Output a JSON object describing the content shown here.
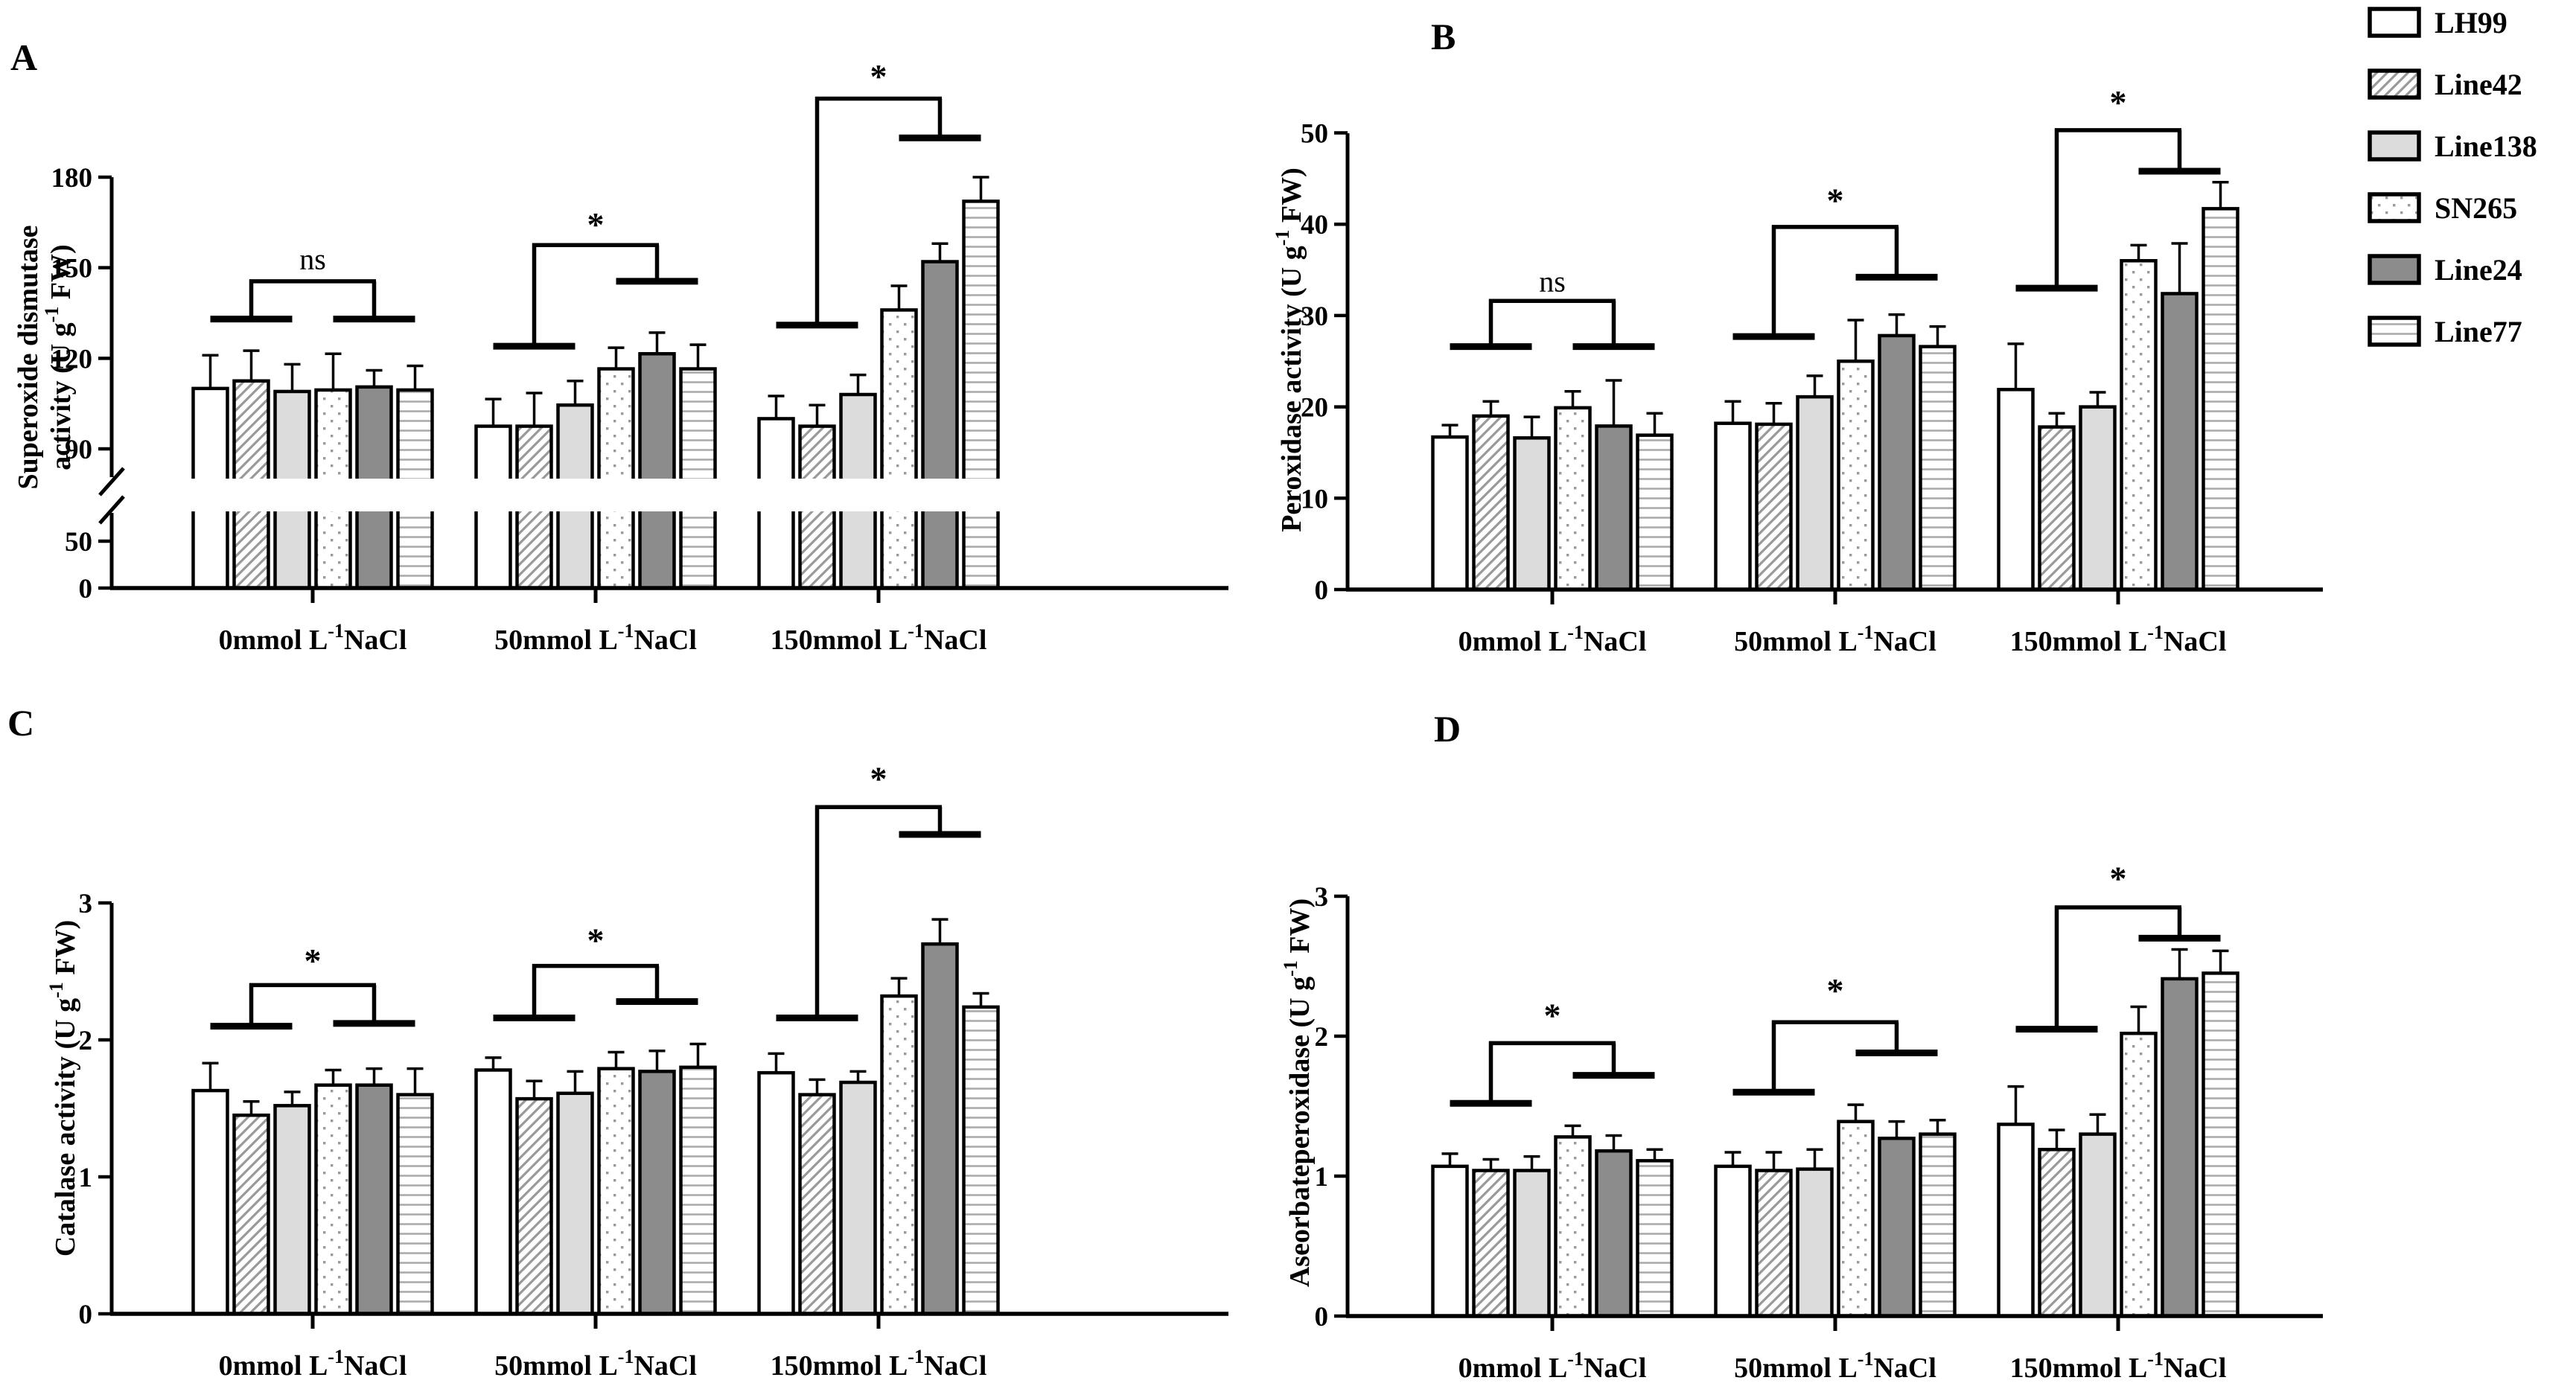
{
  "colors": {
    "ink": "#000000",
    "background": "#ffffff",
    "light_gray_fill": "#dcdcdc",
    "dark_gray_fill": "#8c8c8c",
    "hatch_gray": "#999999",
    "dot_gray": "#9a9a9a",
    "hline_gray": "#ababab"
  },
  "legend": {
    "items": [
      {
        "label": "LH99",
        "pattern": "white"
      },
      {
        "label": "Line42",
        "pattern": "diag"
      },
      {
        "label": "Line138",
        "pattern": "lightgray"
      },
      {
        "label": "SN265",
        "pattern": "dots"
      },
      {
        "label": "Line24",
        "pattern": "darkgray"
      },
      {
        "label": "Line77",
        "pattern": "hlines"
      }
    ]
  },
  "chart_data": [
    {
      "id": "A",
      "panel_label": "A",
      "type": "bar",
      "ylabel": "Superoxide dismutase activity (U g-1 FW)",
      "ylabel_render": [
        [
          {
            "t": "Superoxide dismutase"
          }
        ],
        [
          {
            "t": "activity (U g"
          },
          {
            "t": "-1",
            "sup": true
          },
          {
            "t": " FW)"
          }
        ]
      ],
      "xlabel": "",
      "categories": [
        "0mmol L-1NaCl",
        "50mmol L-1NaCl",
        "150mmol L-1NaCl"
      ],
      "categories_render": [
        [
          {
            "t": "0mmol L"
          },
          {
            "t": "-1",
            "sup": true
          },
          {
            "t": "NaCl"
          }
        ],
        [
          {
            "t": "50mmol L"
          },
          {
            "t": "-1",
            "sup": true
          },
          {
            "t": "NaCl"
          }
        ],
        [
          {
            "t": "150mmol L"
          },
          {
            "t": "-1",
            "sup": true
          },
          {
            "t": "NaCl"
          }
        ]
      ],
      "ylim": [
        0,
        180
      ],
      "axis_break": {
        "low_max": 50,
        "resume_at": 90
      },
      "yticks": [
        {
          "v": 0,
          "label": "0"
        },
        {
          "v": 50,
          "label": "50"
        },
        {
          "v": 90,
          "label": "90"
        },
        {
          "v": 120,
          "label": "120"
        },
        {
          "v": 150,
          "label": "150"
        },
        {
          "v": 180,
          "label": "180"
        }
      ],
      "series": [
        {
          "name": "LH99",
          "values": [
            110.0,
            97.5,
            100.0
          ],
          "errors": [
            11.0,
            9.0,
            7.5
          ]
        },
        {
          "name": "Line42",
          "values": [
            112.5,
            97.5,
            97.5
          ],
          "errors": [
            10.0,
            11.0,
            7.0
          ]
        },
        {
          "name": "Line138",
          "values": [
            109.0,
            104.5,
            108.0
          ],
          "errors": [
            9.0,
            8.0,
            6.5
          ]
        },
        {
          "name": "SN265",
          "values": [
            109.5,
            116.5,
            136.0
          ],
          "errors": [
            12.0,
            7.0,
            8.0
          ]
        },
        {
          "name": "Line24",
          "values": [
            110.5,
            121.5,
            152.0
          ],
          "errors": [
            5.5,
            7.0,
            6.0
          ]
        },
        {
          "name": "Line77",
          "values": [
            109.5,
            116.5,
            172.0
          ],
          "errors": [
            8.0,
            8.0,
            8.0
          ]
        }
      ],
      "annotations": [
        {
          "group": 0,
          "label": "ns",
          "left_foot": 133,
          "peak": 145.5,
          "right_foot": 133,
          "label_v": 153
        },
        {
          "group": 1,
          "label": "*",
          "left_foot": 124,
          "peak": 157.5,
          "right_foot": 145.5,
          "label_v": 164
        },
        {
          "group": 2,
          "label": "*",
          "left_foot": 131,
          "peak": 206,
          "right_foot": 193,
          "label_v": 213
        }
      ]
    },
    {
      "id": "B",
      "panel_label": "B",
      "type": "bar",
      "ylabel": "Peroxidase activity (U g-1 FW)",
      "ylabel_render": [
        [
          {
            "t": "Peroxidase activity (U g"
          },
          {
            "t": "-1",
            "sup": true
          },
          {
            "t": " FW)"
          }
        ]
      ],
      "xlabel": "",
      "categories": [
        "0mmol L-1NaCl",
        "50mmol L-1NaCl",
        "150mmol L-1NaCl"
      ],
      "categories_render": [
        [
          {
            "t": "0mmol L"
          },
          {
            "t": "-1",
            "sup": true
          },
          {
            "t": "NaCl"
          }
        ],
        [
          {
            "t": "50mmol L"
          },
          {
            "t": "-1",
            "sup": true
          },
          {
            "t": "NaCl"
          }
        ],
        [
          {
            "t": "150mmol L"
          },
          {
            "t": "-1",
            "sup": true
          },
          {
            "t": "NaCl"
          }
        ]
      ],
      "ylim": [
        0,
        50
      ],
      "yticks": [
        {
          "v": 0,
          "label": "0"
        },
        {
          "v": 10,
          "label": "10"
        },
        {
          "v": 20,
          "label": "20"
        },
        {
          "v": 30,
          "label": "30"
        },
        {
          "v": 40,
          "label": "40"
        },
        {
          "v": 50,
          "label": "50"
        }
      ],
      "series": [
        {
          "name": "LH99",
          "values": [
            16.7,
            18.2,
            21.9
          ],
          "errors": [
            1.3,
            2.4,
            5.0
          ]
        },
        {
          "name": "Line42",
          "values": [
            19.0,
            18.1,
            17.8
          ],
          "errors": [
            1.6,
            2.3,
            1.5
          ]
        },
        {
          "name": "Line138",
          "values": [
            16.6,
            21.1,
            20.0
          ],
          "errors": [
            2.3,
            2.3,
            1.6
          ]
        },
        {
          "name": "SN265",
          "values": [
            19.9,
            25.0,
            36.0
          ],
          "errors": [
            1.8,
            4.5,
            1.7
          ]
        },
        {
          "name": "Line24",
          "values": [
            17.9,
            27.8,
            32.4
          ],
          "errors": [
            5.0,
            2.3,
            5.5
          ]
        },
        {
          "name": "Line77",
          "values": [
            16.9,
            26.6,
            41.7
          ],
          "errors": [
            2.4,
            2.2,
            2.9
          ]
        }
      ],
      "annotations": [
        {
          "group": 0,
          "label": "ns",
          "left_foot": 26.6,
          "peak": 31.6,
          "right_foot": 26.6,
          "label_v": 33.8
        },
        {
          "group": 1,
          "label": "*",
          "left_foot": 27.7,
          "peak": 39.7,
          "right_foot": 34.2,
          "label_v": 42.5
        },
        {
          "group": 2,
          "label": "*",
          "left_foot": 33.0,
          "peak": 50.3,
          "right_foot": 45.8,
          "label_v": 53.2
        }
      ]
    },
    {
      "id": "C",
      "panel_label": "C",
      "type": "bar",
      "ylabel": "Catalase activity (U g-1 FW)",
      "ylabel_render": [
        [
          {
            "t": "Catalase activity (U g"
          },
          {
            "t": "-1",
            "sup": true
          },
          {
            "t": " FW)"
          }
        ]
      ],
      "xlabel": "",
      "categories": [
        "0mmol L-1NaCl",
        "50mmol L-1NaCl",
        "150mmol L-1NaCl"
      ],
      "categories_render": [
        [
          {
            "t": "0mmol L"
          },
          {
            "t": "-1",
            "sup": true
          },
          {
            "t": "NaCl"
          }
        ],
        [
          {
            "t": "50mmol L"
          },
          {
            "t": "-1",
            "sup": true
          },
          {
            "t": "NaCl"
          }
        ],
        [
          {
            "t": "150mmol L"
          },
          {
            "t": "-1",
            "sup": true
          },
          {
            "t": "NaCl"
          }
        ]
      ],
      "ylim": [
        0,
        3
      ],
      "yticks": [
        {
          "v": 0,
          "label": "0"
        },
        {
          "v": 1,
          "label": "1"
        },
        {
          "v": 2,
          "label": "2"
        },
        {
          "v": 3,
          "label": "3"
        }
      ],
      "series": [
        {
          "name": "LH99",
          "values": [
            1.63,
            1.78,
            1.76
          ],
          "errors": [
            0.2,
            0.09,
            0.14
          ]
        },
        {
          "name": "Line42",
          "values": [
            1.45,
            1.57,
            1.6
          ],
          "errors": [
            0.1,
            0.13,
            0.11
          ]
        },
        {
          "name": "Line138",
          "values": [
            1.52,
            1.61,
            1.69
          ],
          "errors": [
            0.1,
            0.16,
            0.08
          ]
        },
        {
          "name": "SN265",
          "values": [
            1.67,
            1.79,
            2.32
          ],
          "errors": [
            0.11,
            0.12,
            0.13
          ]
        },
        {
          "name": "Line24",
          "values": [
            1.67,
            1.77,
            2.7
          ],
          "errors": [
            0.12,
            0.15,
            0.18
          ]
        },
        {
          "name": "Line77",
          "values": [
            1.6,
            1.8,
            2.24
          ],
          "errors": [
            0.19,
            0.17,
            0.1
          ]
        }
      ],
      "annotations": [
        {
          "group": 0,
          "label": "*",
          "left_foot": 2.1,
          "peak": 2.4,
          "right_foot": 2.12,
          "label_v": 2.57
        },
        {
          "group": 1,
          "label": "*",
          "left_foot": 2.16,
          "peak": 2.54,
          "right_foot": 2.28,
          "label_v": 2.72
        },
        {
          "group": 2,
          "label": "*",
          "left_foot": 2.16,
          "peak": 3.7,
          "right_foot": 3.5,
          "label_v": 3.9
        }
      ]
    },
    {
      "id": "D",
      "panel_label": "D",
      "type": "bar",
      "ylabel": "Aseorbateperoxidase (U g-1 FW)",
      "ylabel_render": [
        [
          {
            "t": "Aseorbateperoxidase (U g"
          },
          {
            "t": "-1",
            "sup": true
          },
          {
            "t": " FW)"
          }
        ]
      ],
      "xlabel": "",
      "categories": [
        "0mmol L-1NaCl",
        "50mmol L-1NaCl",
        "150mmol L-1NaCl"
      ],
      "categories_render": [
        [
          {
            "t": "0mmol L"
          },
          {
            "t": "-1",
            "sup": true
          },
          {
            "t": "NaCl"
          }
        ],
        [
          {
            "t": "50mmol L"
          },
          {
            "t": "-1",
            "sup": true
          },
          {
            "t": "NaCl"
          }
        ],
        [
          {
            "t": "150mmol L"
          },
          {
            "t": "-1",
            "sup": true
          },
          {
            "t": "NaCl"
          }
        ]
      ],
      "ylim": [
        0,
        3
      ],
      "yticks": [
        {
          "v": 0,
          "label": "0"
        },
        {
          "v": 1,
          "label": "1"
        },
        {
          "v": 2,
          "label": "2"
        },
        {
          "v": 3,
          "label": "3"
        }
      ],
      "series": [
        {
          "name": "LH99",
          "values": [
            1.07,
            1.07,
            1.37
          ],
          "errors": [
            0.09,
            0.1,
            0.27
          ]
        },
        {
          "name": "Line42",
          "values": [
            1.04,
            1.04,
            1.19
          ],
          "errors": [
            0.08,
            0.13,
            0.14
          ]
        },
        {
          "name": "Line138",
          "values": [
            1.04,
            1.05,
            1.3
          ],
          "errors": [
            0.1,
            0.14,
            0.14
          ]
        },
        {
          "name": "SN265",
          "values": [
            1.28,
            1.39,
            2.02
          ],
          "errors": [
            0.08,
            0.12,
            0.19
          ]
        },
        {
          "name": "Line24",
          "values": [
            1.18,
            1.27,
            2.41
          ],
          "errors": [
            0.11,
            0.12,
            0.21
          ]
        },
        {
          "name": "Line77",
          "values": [
            1.11,
            1.3,
            2.45
          ],
          "errors": [
            0.08,
            0.1,
            0.16
          ]
        }
      ],
      "annotations": [
        {
          "group": 0,
          "label": "*",
          "left_foot": 1.52,
          "peak": 1.95,
          "right_foot": 1.72,
          "label_v": 2.14
        },
        {
          "group": 1,
          "label": "*",
          "left_foot": 1.6,
          "peak": 2.1,
          "right_foot": 1.88,
          "label_v": 2.32
        },
        {
          "group": 2,
          "label": "*",
          "left_foot": 2.05,
          "peak": 2.92,
          "right_foot": 2.7,
          "label_v": 3.12
        }
      ]
    }
  ]
}
